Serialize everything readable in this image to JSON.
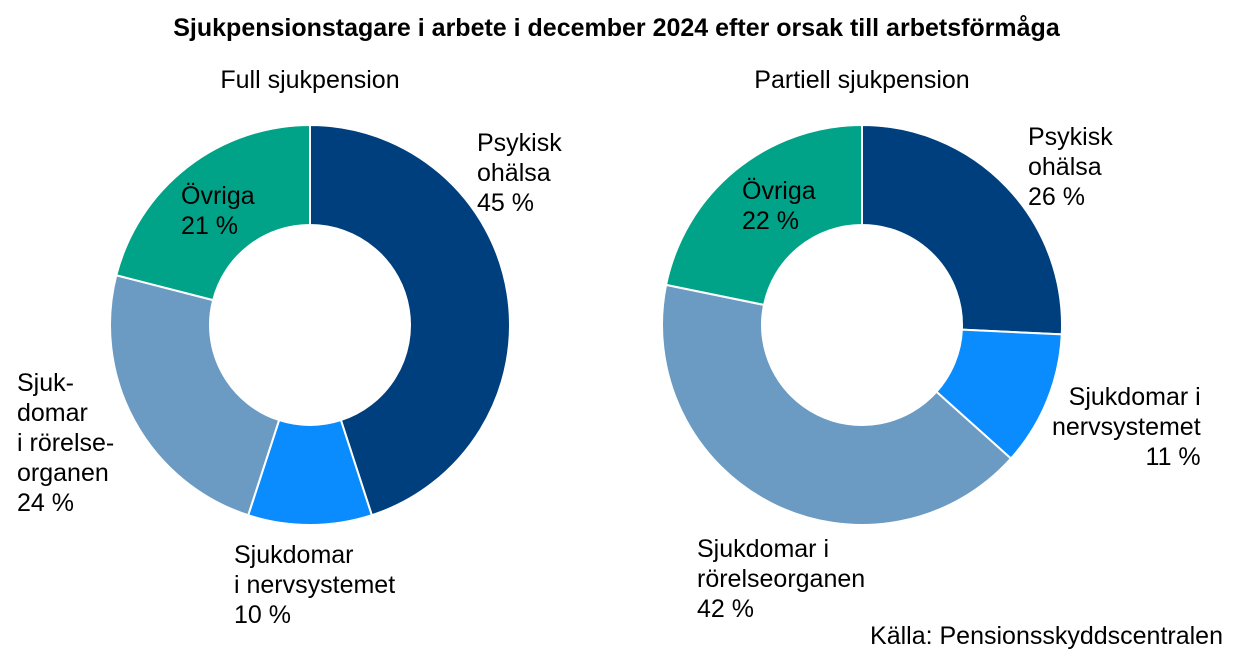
{
  "title": "Sjukpensionstagare i arbete i december 2024 efter orsak till arbetsförmåga",
  "source": "Källa: Pensionsskyddscentralen",
  "colors": {
    "psykisk": "#003f7d",
    "nerv": "#0a8cff",
    "rorelse": "#6b9bc3",
    "ovriga": "#00a388"
  },
  "chart_data": [
    {
      "type": "pie",
      "subtitle": "Full sjukpension",
      "slices": [
        {
          "key": "psykisk",
          "label_lines": [
            "Psykisk",
            "ohälsa"
          ],
          "value_label": "45 %",
          "value": 45
        },
        {
          "key": "nerv",
          "label_lines": [
            "Sjukdomar",
            "i nervsystemet"
          ],
          "value_label": "10 %",
          "value": 10
        },
        {
          "key": "rorelse",
          "label_lines": [
            "Sjuk-",
            "domar",
            "i rörelse-",
            "organen"
          ],
          "value_label": "24 %",
          "value": 24
        },
        {
          "key": "ovriga",
          "label_lines": [
            "Övriga"
          ],
          "value_label": "21 %",
          "value": 21
        }
      ]
    },
    {
      "type": "pie",
      "subtitle": "Partiell sjukpension",
      "slices": [
        {
          "key": "psykisk",
          "label_lines": [
            "Psykisk",
            "ohälsa"
          ],
          "value_label": "26 %",
          "value": 26
        },
        {
          "key": "nerv",
          "label_lines": [
            "Sjukdomar i",
            "nervsystemet"
          ],
          "value_label": "11 %",
          "value": 11
        },
        {
          "key": "rorelse",
          "label_lines": [
            "Sjukdomar i",
            "rörelseorganen"
          ],
          "value_label": "42 %",
          "value": 42
        },
        {
          "key": "ovriga",
          "label_lines": [
            "Övriga"
          ],
          "value_label": "22 %",
          "value": 22
        }
      ]
    }
  ]
}
